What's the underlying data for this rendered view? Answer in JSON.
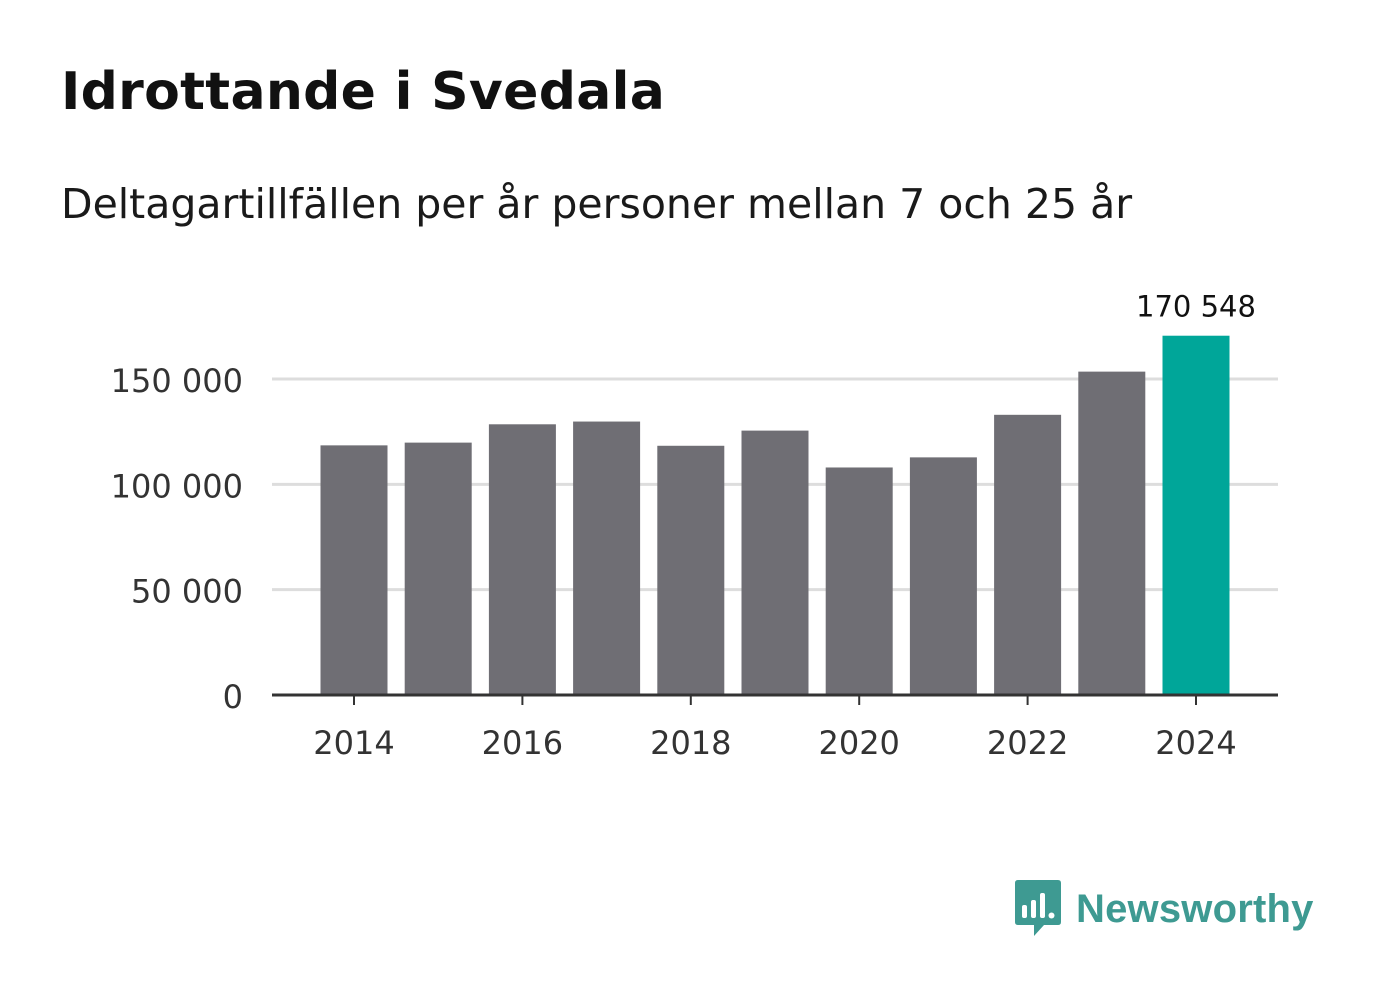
{
  "header": {
    "title": "Idrottande i Svedala",
    "subtitle": "Deltagartillfällen per år personer mellan 7 och 25 år"
  },
  "brand": {
    "name": "Newsworthy",
    "logo_icon": "bar-chart-speech-bubble-icon"
  },
  "colors": {
    "bar": "#6f6e74",
    "highlight": "#00a699",
    "grid": "#dddddd",
    "axis": "#333333",
    "brand": "#3e9a92"
  },
  "chart_data": {
    "type": "bar",
    "title": "Idrottande i Svedala",
    "subtitle": "Deltagartillfällen per år personer mellan 7 och 25 år",
    "xlabel": "",
    "ylabel": "",
    "categories": [
      "2014",
      "2015",
      "2016",
      "2017",
      "2018",
      "2019",
      "2020",
      "2021",
      "2022",
      "2023",
      "2024"
    ],
    "values": [
      118500,
      119800,
      128500,
      129800,
      118300,
      125500,
      108000,
      112800,
      133000,
      153500,
      170548
    ],
    "highlight_index": 10,
    "highlight_label": "170 548",
    "ylim": [
      0,
      175000
    ],
    "yticks": [
      0,
      50000,
      100000,
      150000
    ],
    "ytick_labels": [
      "0",
      "50 000",
      "100 000",
      "150 000"
    ],
    "xtick_labels": [
      "2014",
      "2016",
      "2018",
      "2020",
      "2022",
      "2024"
    ],
    "grid": true,
    "legend": "none"
  }
}
